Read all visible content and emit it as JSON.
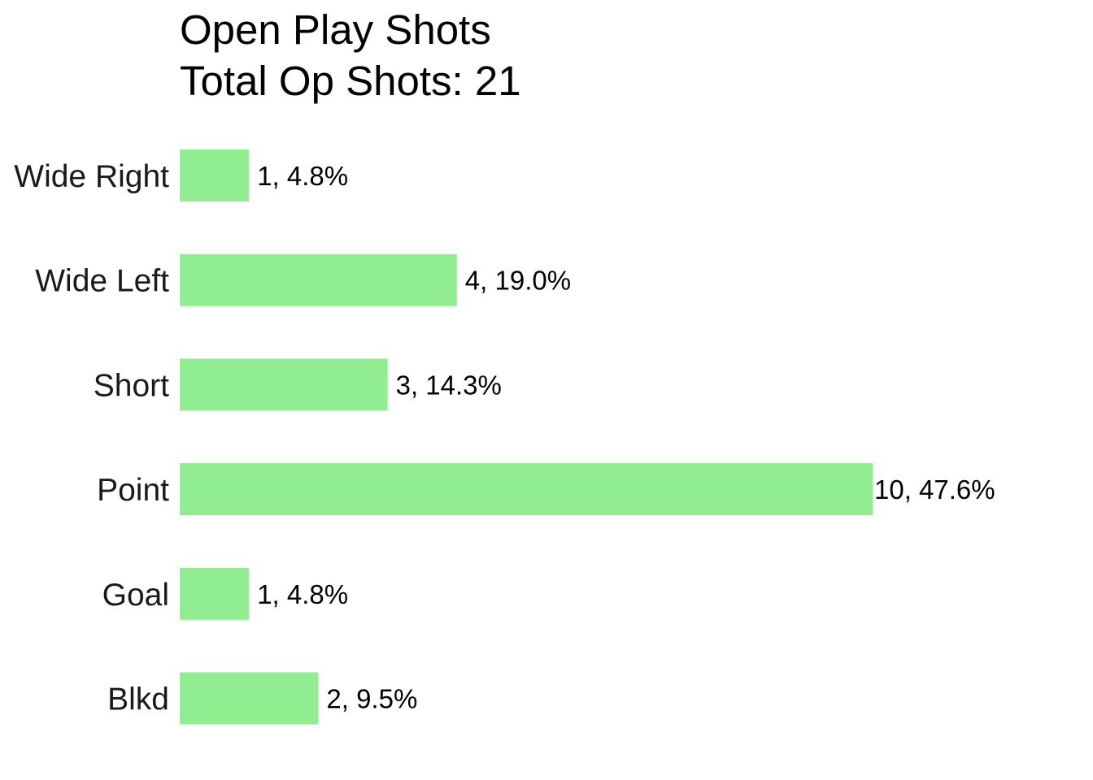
{
  "chart_data": {
    "type": "bar",
    "orientation": "horizontal",
    "title": "Open Play Shots",
    "subtitle": "Total Op Shots: 21",
    "categories": [
      "Wide Right",
      "Wide Left",
      "Short",
      "Point",
      "Goal",
      "Blkd"
    ],
    "values": [
      1,
      4,
      3,
      10,
      1,
      2
    ],
    "data_labels": [
      "1, 4.8%",
      "4, 19.0%",
      "3, 14.3%",
      "10, 47.6%",
      "1, 4.8%",
      "2, 9.5%"
    ],
    "xlim": [
      0,
      10
    ],
    "xlabel": "",
    "ylabel": "",
    "grid": false,
    "legend": "none",
    "bar_color": "#90EE90"
  }
}
